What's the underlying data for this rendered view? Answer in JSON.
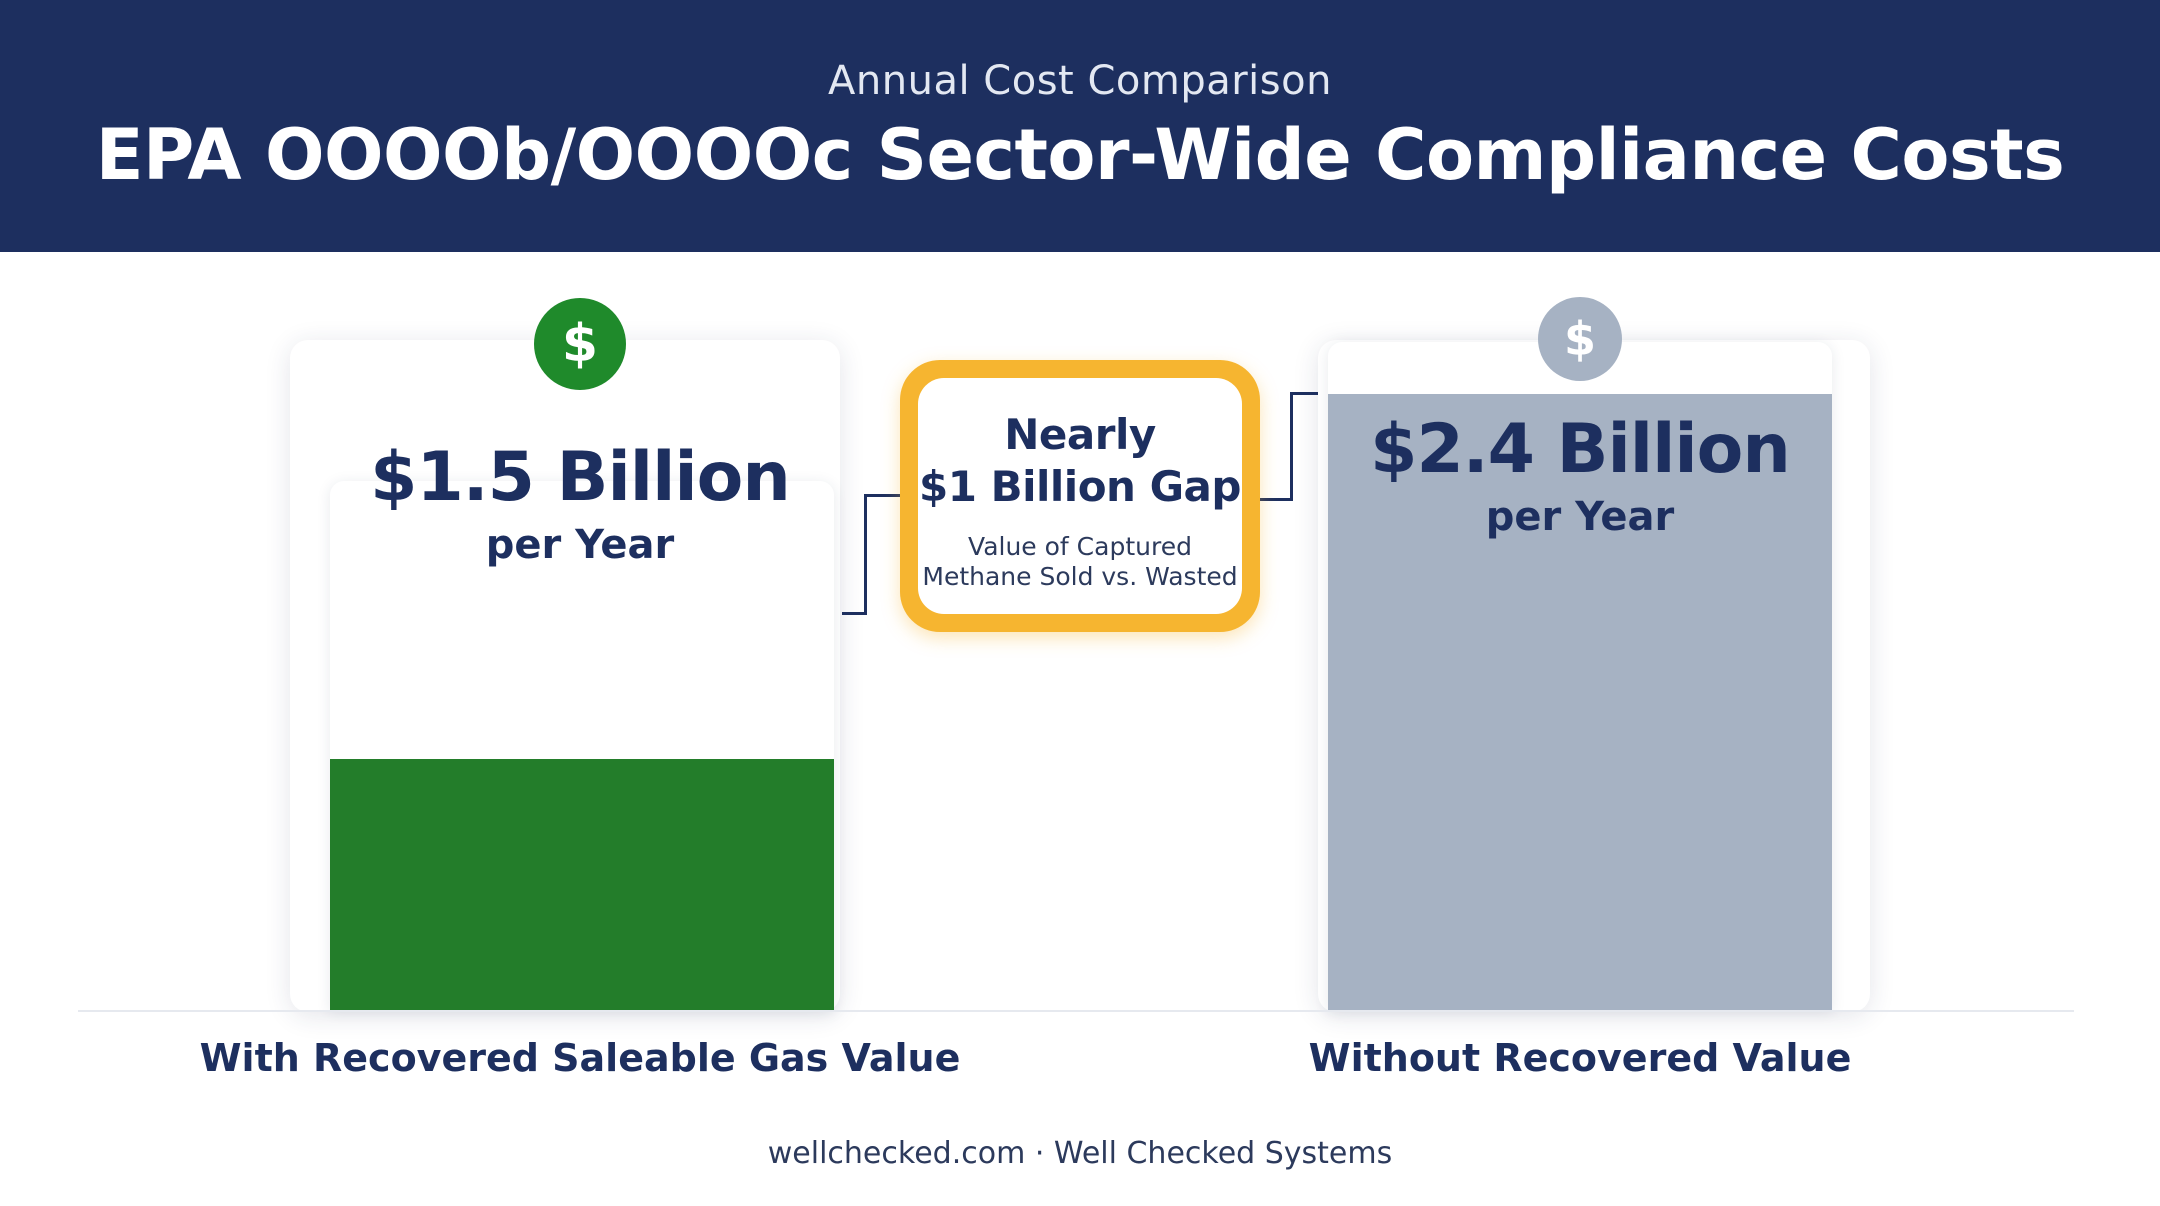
{
  "header": {
    "subtitle": "Annual Cost Comparison",
    "title": "EPA OOOOb/OOOOc Sector-Wide Compliance Costs"
  },
  "chart_data": {
    "type": "bar",
    "title": "EPA OOOOb/OOOOc Sector-Wide Compliance Costs",
    "subtitle": "Annual Cost Comparison",
    "categories": [
      "With Recovered Saleable Gas Value",
      "Without Recovered Value"
    ],
    "values": [
      1.5,
      2.4
    ],
    "value_labels": [
      "$1.5 Billion",
      "$2.4 Billion"
    ],
    "unit_labels": [
      "per Year",
      "per Year"
    ],
    "colors": [
      "#237d2a",
      "#a6b2c3"
    ],
    "icon_colors": [
      "#1f8a2b",
      "#a6b2c3"
    ],
    "icon_glyph": "$",
    "ylim": [
      0,
      2.4
    ],
    "grid": false,
    "annotation": {
      "title_line1": "Nearly",
      "title_line2": "$1 Billion Gap",
      "sub_line1": "Value of Captured",
      "sub_line2": "Methane Sold vs. Wasted",
      "border_color": "#f6b530"
    }
  },
  "footer": {
    "text": "wellchecked.com · Well Checked Systems"
  }
}
